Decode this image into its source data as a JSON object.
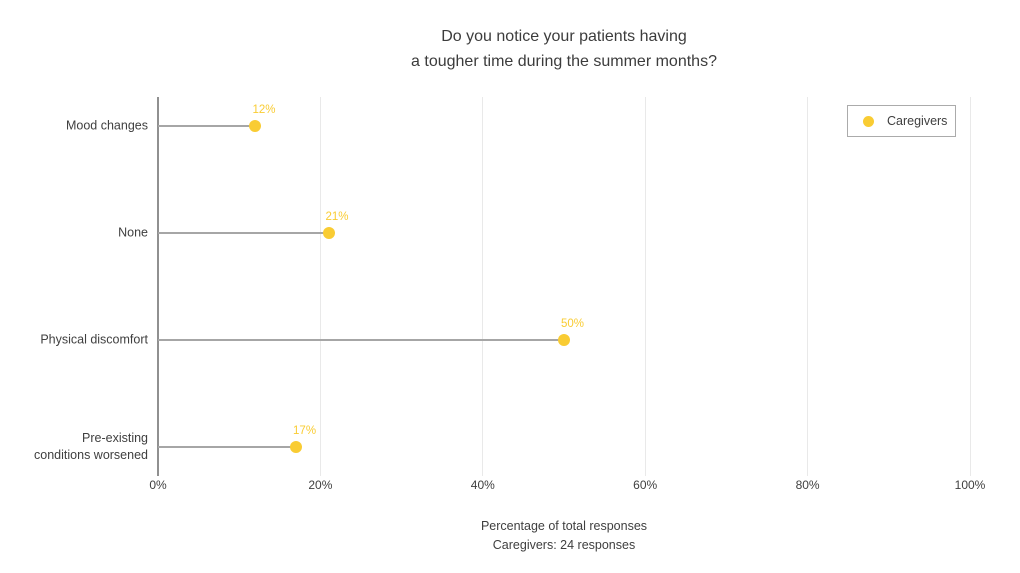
{
  "colors": {
    "series_yellow": "#F9CC33",
    "axis_line": "#909090",
    "stem_gray": "#A6A6A6",
    "gridline": "#E9E9E9",
    "text": "#3F3F3F"
  },
  "chart_data": {
    "type": "scatter",
    "variant": "horizontal-lollipop-dot-plot",
    "title": "Do you notice your patients having\na tougher time during the summer months?",
    "categories": [
      "Mood changes",
      "None",
      "Physical discomfort",
      "Pre-existing\nconditions worsened"
    ],
    "series": [
      {
        "name": "Caregivers",
        "color": "#F9CC33",
        "values": [
          12,
          21,
          50,
          17
        ],
        "point_labels": [
          "12%",
          "21%",
          "50%",
          "17%"
        ]
      }
    ],
    "xlabel": "Percentage of total responses",
    "x_sublabel": "Caregivers: 24 responses",
    "xlim": [
      0,
      100
    ],
    "xticks": [
      "0%",
      "20%",
      "40%",
      "60%",
      "80%",
      "100%"
    ],
    "grid": "vertical-only",
    "legend_position": "top-right"
  }
}
